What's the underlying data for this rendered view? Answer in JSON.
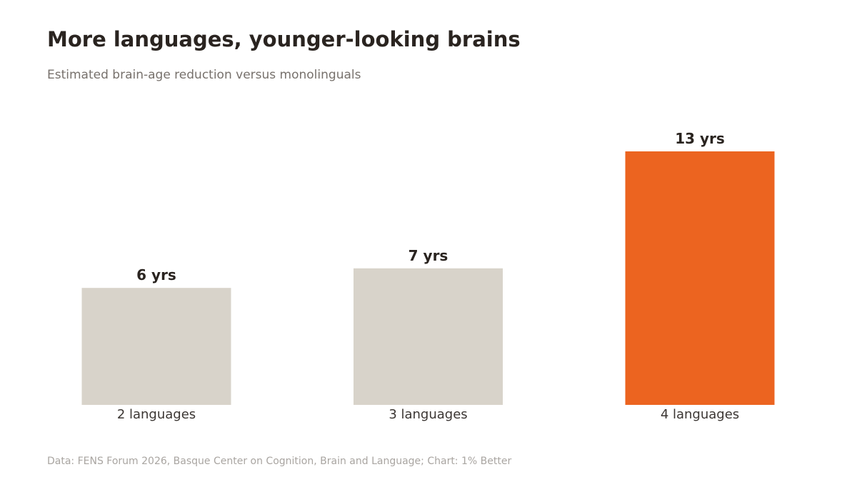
{
  "header": {
    "title": "More languages, younger-looking brains",
    "subtitle": "Estimated brain-age reduction versus monolinguals"
  },
  "footer": {
    "source": "Data: FENS Forum 2026, Basque Center on Cognition, Brain and Language; Chart: 1% Better"
  },
  "colors": {
    "muted_bar": "#d8d3ca",
    "highlight_bar": "#ec6420",
    "value_label": "#2a2420",
    "category_label": "#3b3633"
  },
  "chart_data": {
    "type": "bar",
    "title": "More languages, younger-looking brains",
    "subtitle": "Estimated brain-age reduction versus monolinguals",
    "categories": [
      "2 languages",
      "3 languages",
      "4 languages"
    ],
    "values": [
      6,
      7,
      13
    ],
    "value_labels": [
      "6 yrs",
      "7 yrs",
      "13 yrs"
    ],
    "highlight_index": 2,
    "ylim": [
      0,
      13
    ],
    "grid": false,
    "legend": "none"
  }
}
